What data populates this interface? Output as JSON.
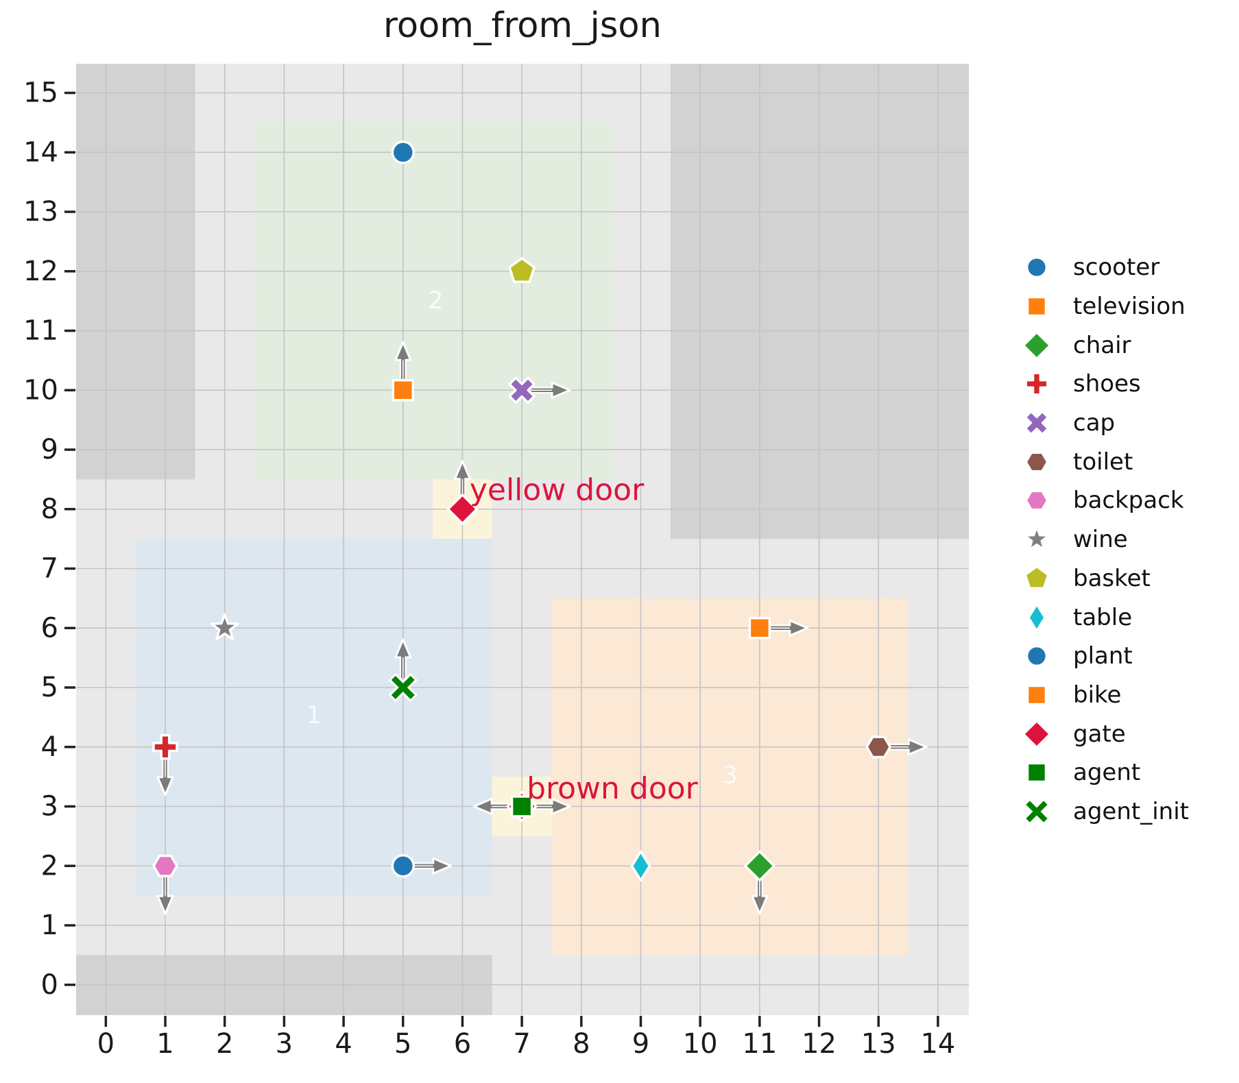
{
  "title": "room_from_json",
  "legend": {
    "position": "right",
    "items": [
      {
        "label": "scooter",
        "marker": "circle",
        "color": "#1f77b4"
      },
      {
        "label": "television",
        "marker": "square",
        "color": "#ff7f0e"
      },
      {
        "label": "chair",
        "marker": "diamond",
        "color": "#2ca02c"
      },
      {
        "label": "shoes",
        "marker": "plus",
        "color": "#d62728"
      },
      {
        "label": "cap",
        "marker": "x_filled",
        "color": "#9467bd"
      },
      {
        "label": "toilet",
        "marker": "hexagon",
        "color": "#8c564b"
      },
      {
        "label": "backpack",
        "marker": "hexagon",
        "color": "#e377c2"
      },
      {
        "label": "wine",
        "marker": "star",
        "color": "#7f7f7f"
      },
      {
        "label": "basket",
        "marker": "pentagon",
        "color": "#bcbd22"
      },
      {
        "label": "table",
        "marker": "thin_diamond",
        "color": "#17becf"
      },
      {
        "label": "plant",
        "marker": "circle",
        "color": "#1f77b4"
      },
      {
        "label": "bike",
        "marker": "square",
        "color": "#ff7f0e"
      },
      {
        "label": "gate",
        "marker": "diamond",
        "color": "#dc143c"
      },
      {
        "label": "agent",
        "marker": "square",
        "color": "#008000"
      },
      {
        "label": "agent_init",
        "marker": "x_stroke",
        "color": "#008000"
      }
    ]
  },
  "chart_data": {
    "type": "scatter",
    "title": "room_from_json",
    "xlabel": "",
    "ylabel": "",
    "xlim": [
      -0.5,
      14.52
    ],
    "ylim": [
      -0.51,
      15.49
    ],
    "x_ticks": [
      0,
      1,
      2,
      3,
      4,
      5,
      6,
      7,
      8,
      9,
      10,
      11,
      12,
      13,
      14
    ],
    "y_ticks": [
      0,
      1,
      2,
      3,
      4,
      5,
      6,
      7,
      8,
      9,
      10,
      11,
      12,
      13,
      14,
      15
    ],
    "grid": true,
    "colors": {
      "plot_background": "#e9e9e9",
      "wall": "#d2d2d2",
      "door_patch": "#fcf4da",
      "gridline": "#c3c3c3",
      "arrow": "#7b7b7b",
      "door_label": "#dc143c",
      "room_label": "#ffffff",
      "tick_label": "#1a1a1a"
    },
    "walls": [
      {
        "name": "wall-top-left",
        "x0": -0.5,
        "y0": 8.5,
        "x1": 1.5,
        "y1": 15.49
      },
      {
        "name": "wall-top-right",
        "x0": 9.5,
        "y0": 7.5,
        "x1": 14.52,
        "y1": 15.49
      },
      {
        "name": "wall-bottom",
        "x0": -0.5,
        "y0": -0.51,
        "x1": 6.5,
        "y1": 0.5
      }
    ],
    "rooms": [
      {
        "id": "1",
        "x0": 0.5,
        "y0": 1.5,
        "x1": 6.5,
        "y1": 7.5,
        "color": "#dde7f0",
        "label": "1",
        "label_x": 3.5,
        "label_y": 4.53
      },
      {
        "id": "2",
        "x0": 2.5,
        "y0": 8.5,
        "x1": 8.5,
        "y1": 14.5,
        "color": "#e2ecdf",
        "label": "2",
        "label_x": 5.55,
        "label_y": 11.5
      },
      {
        "id": "3",
        "x0": 7.5,
        "y0": 0.5,
        "x1": 13.5,
        "y1": 6.5,
        "color": "#fbe8d5",
        "label": "3",
        "label_x": 10.5,
        "label_y": 3.52
      }
    ],
    "doors": [
      {
        "name": "yellow door",
        "x": 6,
        "y": 8,
        "label": "yellow door",
        "label_x": 6.12,
        "label_y": 8.32
      },
      {
        "name": "brown door",
        "x": 7,
        "y": 3,
        "label": "brown door",
        "label_x": 7.08,
        "label_y": 3.3
      }
    ],
    "points": [
      {
        "name": "scooter",
        "x": 5,
        "y": 14,
        "marker": "circle",
        "color": "#1f77b4",
        "arrows": []
      },
      {
        "name": "television",
        "x": 5,
        "y": 10,
        "marker": "square",
        "color": "#ff7f0e",
        "arrows": [
          "up"
        ]
      },
      {
        "name": "basket",
        "x": 7,
        "y": 12,
        "marker": "pentagon",
        "color": "#bcbd22",
        "arrows": []
      },
      {
        "name": "cap",
        "x": 7,
        "y": 10,
        "marker": "x_filled",
        "color": "#9467bd",
        "arrows": [
          "right"
        ]
      },
      {
        "name": "gate-yellow",
        "x": 6,
        "y": 8,
        "marker": "diamond",
        "color": "#dc143c",
        "arrows": [
          "up"
        ]
      },
      {
        "name": "wine",
        "x": 2,
        "y": 6,
        "marker": "star",
        "color": "#7f7f7f",
        "arrows": []
      },
      {
        "name": "agent_init",
        "x": 5,
        "y": 5,
        "marker": "x_stroke",
        "color": "#008000",
        "arrows": [
          "up"
        ]
      },
      {
        "name": "shoes",
        "x": 1,
        "y": 4,
        "marker": "plus",
        "color": "#d62728",
        "arrows": [
          "down"
        ]
      },
      {
        "name": "backpack",
        "x": 1,
        "y": 2,
        "marker": "hexagon",
        "color": "#e377c2",
        "arrows": [
          "down"
        ]
      },
      {
        "name": "plant",
        "x": 5,
        "y": 2,
        "marker": "circle",
        "color": "#1f77b4",
        "arrows": [
          "right"
        ]
      },
      {
        "name": "gate-brown",
        "x": 7,
        "y": 3,
        "marker": "diamond",
        "color": "#dc143c",
        "arrows": []
      },
      {
        "name": "agent",
        "x": 7,
        "y": 3,
        "marker": "square",
        "color": "#008000",
        "arrows": [
          "left",
          "right"
        ]
      },
      {
        "name": "table",
        "x": 9,
        "y": 2,
        "marker": "thin_diamond",
        "color": "#17becf",
        "arrows": []
      },
      {
        "name": "chair",
        "x": 11,
        "y": 2,
        "marker": "diamond",
        "color": "#2ca02c",
        "arrows": [
          "down"
        ]
      },
      {
        "name": "bike",
        "x": 11,
        "y": 6,
        "marker": "square",
        "color": "#ff7f0e",
        "arrows": [
          "right"
        ]
      },
      {
        "name": "toilet",
        "x": 13,
        "y": 4,
        "marker": "hexagon",
        "color": "#8c564b",
        "arrows": [
          "right"
        ]
      }
    ]
  }
}
